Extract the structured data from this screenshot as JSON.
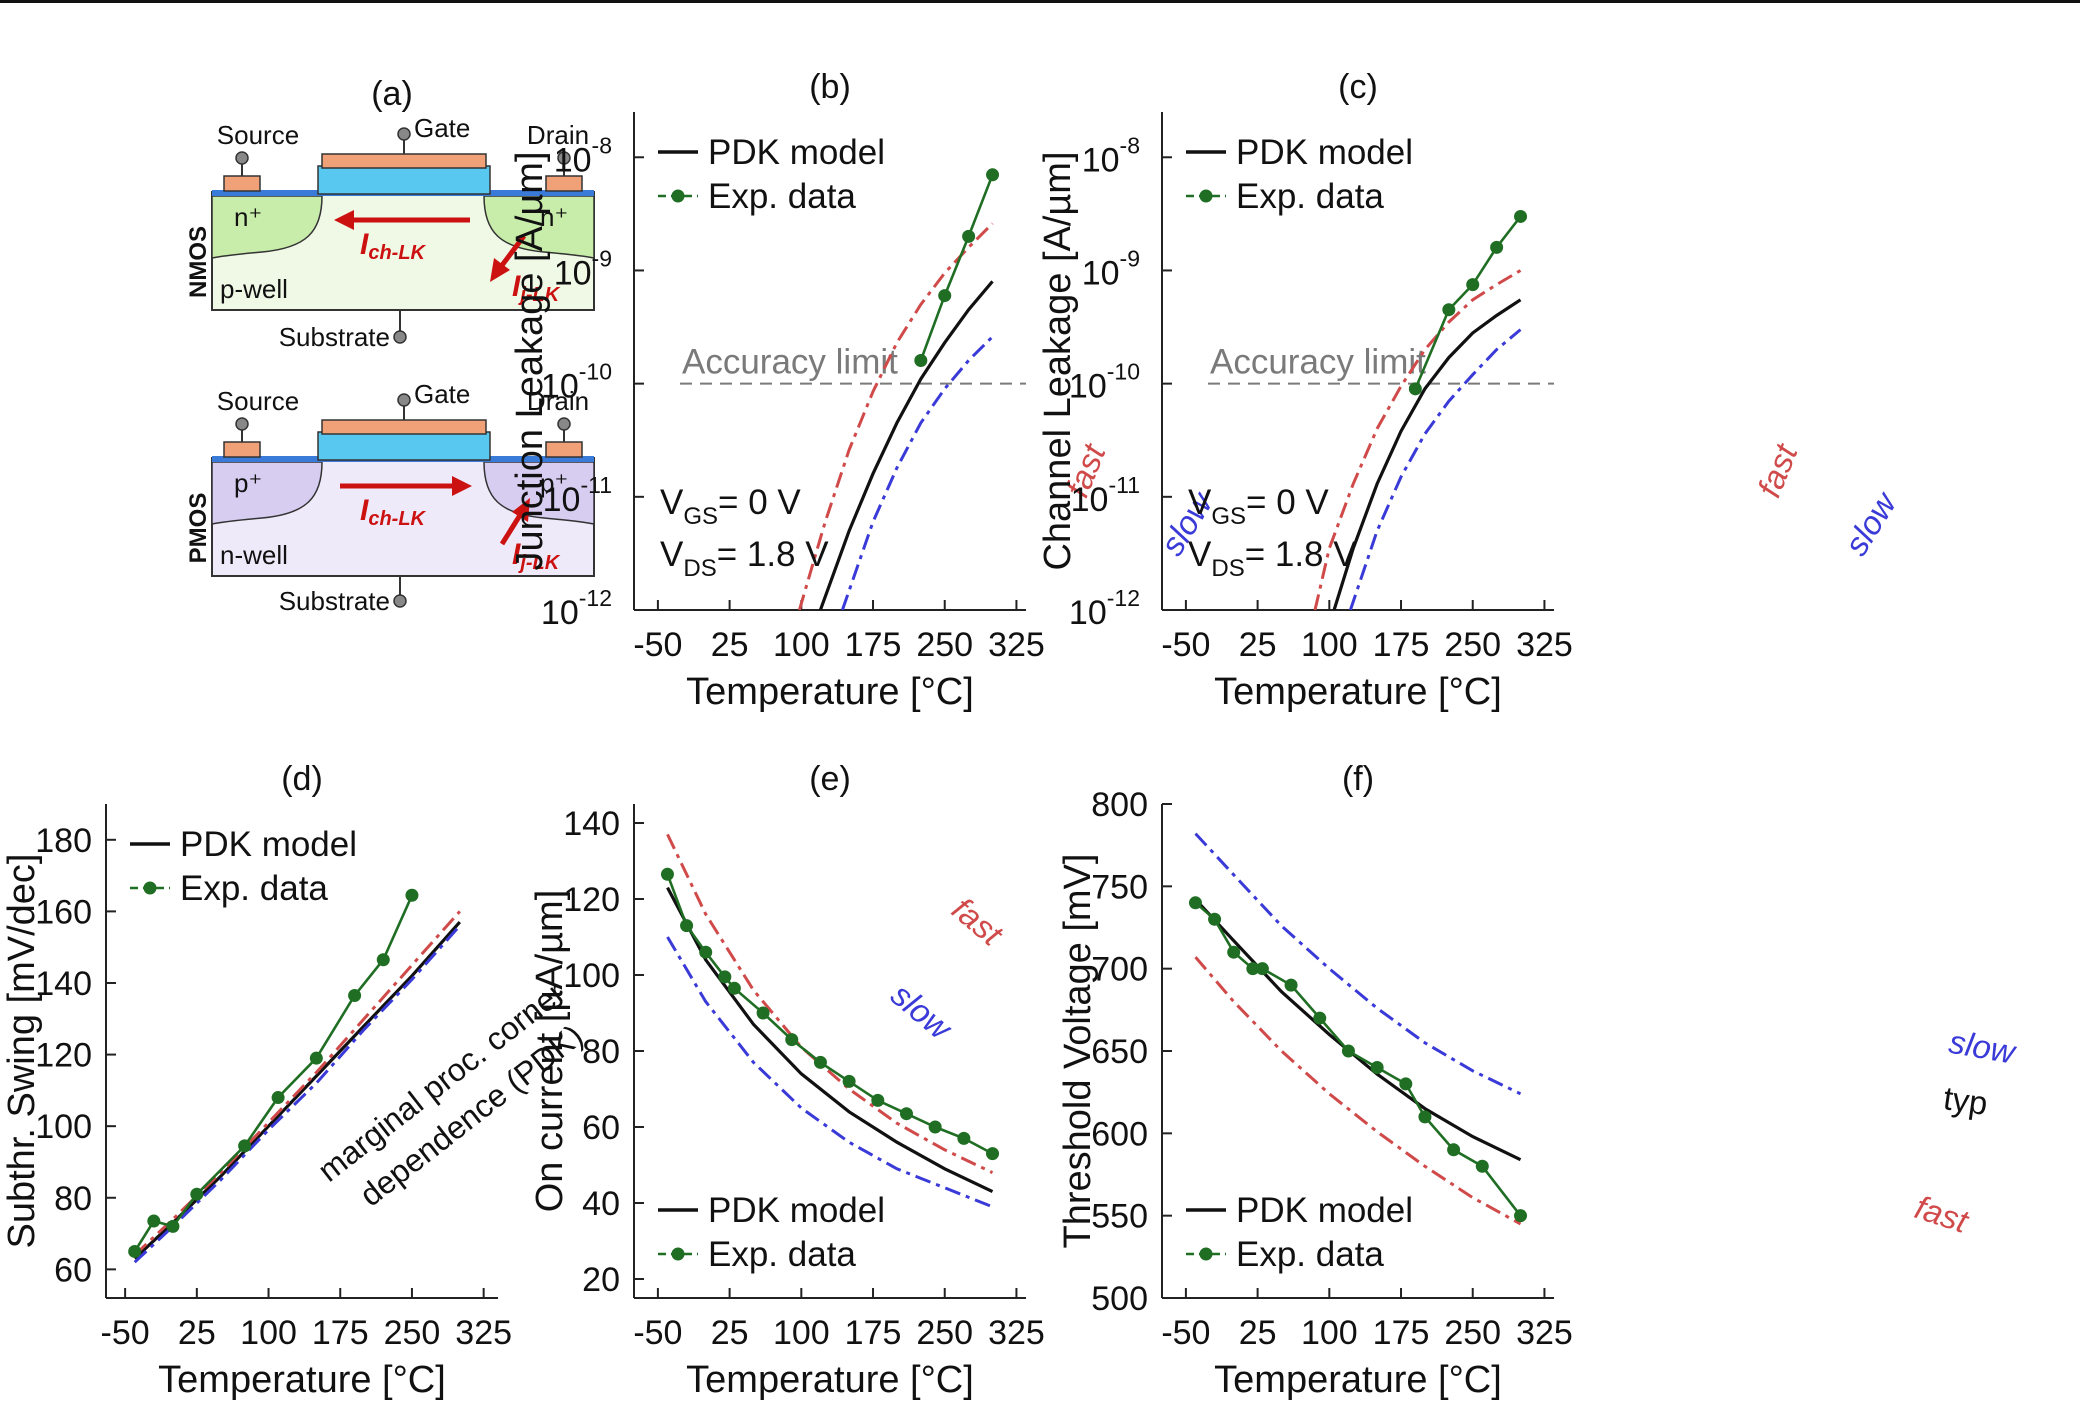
{
  "colors": {
    "pdk": "#111111",
    "exp": "#1f6e23",
    "fast": "#d04a4a",
    "slow": "#3a3ad8",
    "accuracy": "#7a7a7a",
    "current_arrow": "#cc1111",
    "gate_fill": "#f0a178",
    "oxide_fill": "#58c8f0",
    "nmos_well": "#f0f8e6",
    "nmos_diff": "#c8ecaa",
    "pmos_well": "#eeeafa",
    "pmos_diff": "#d6cdf0",
    "contact_fill": "#f0a178"
  },
  "diagram": {
    "panel_label": "(a)",
    "nmos": {
      "device_label": "NMOS",
      "source": "Source",
      "gate": "Gate",
      "drain": "Drain",
      "left_diff": "n⁺",
      "right_diff": "n⁺",
      "well": "p-well",
      "substrate": "Substrate",
      "ich": "I",
      "ich_sub": "ch-LK",
      "ij": "I",
      "ij_sub": "j-LK"
    },
    "pmos": {
      "device_label": "PMOS",
      "source": "Source",
      "gate": "Gate",
      "drain": "Drain",
      "left_diff": "p⁺",
      "right_diff": "p⁺",
      "well": "n-well",
      "substrate": "Substrate",
      "ich": "I",
      "ich_sub": "ch-LK",
      "ij": "I",
      "ij_sub": "j-LK"
    }
  },
  "chart_data": [
    {
      "id": "b",
      "type": "line",
      "title": "(b)",
      "xlabel": "Temperature [°C]",
      "ylabel": "Junction Leakage [A/µm]",
      "xlim": [
        -75,
        335
      ],
      "ylim_exp": [
        -12,
        -7.6
      ],
      "yscale": "log",
      "xticks": [
        "-50",
        "25",
        "100",
        "175",
        "250",
        "325"
      ],
      "yticks": [
        {
          "base": "10",
          "exp": "-8"
        },
        {
          "base": "10",
          "exp": "-9"
        },
        {
          "base": "10",
          "exp": "-10"
        },
        {
          "base": "10",
          "exp": "-11"
        },
        {
          "base": "10",
          "exp": "-12"
        }
      ],
      "legend": {
        "pdk": "PDK model",
        "exp": "Exp. data",
        "position": "top-left"
      },
      "accuracy_limit": {
        "label": "Accuracy limit",
        "value": 1e-10
      },
      "bias": [
        {
          "v": "V",
          "sub": "GS",
          "rest": "= 0 V"
        },
        {
          "v": "V",
          "sub": "DS",
          "rest": "= 1.8 V"
        }
      ],
      "corner_labels": {
        "fast": "fast",
        "slow": "slow"
      },
      "series": [
        {
          "name": "PDK model",
          "style": "solid",
          "x": [
            120,
            150,
            175,
            200,
            225,
            250,
            275,
            300
          ],
          "y": [
            1e-12,
            5e-12,
            1.6e-11,
            4.5e-11,
            1.1e-10,
            2.3e-10,
            4.5e-10,
            8e-10
          ]
        },
        {
          "name": "fast",
          "style": "dashdot",
          "x": [
            98,
            125,
            150,
            175,
            200,
            225,
            250,
            275,
            300
          ],
          "y": [
            1e-12,
            6e-12,
            2.6e-11,
            8.5e-11,
            2.3e-10,
            5e-10,
            9.5e-10,
            1.6e-09,
            2.6e-09
          ]
        },
        {
          "name": "slow",
          "style": "dashdot",
          "x": [
            143,
            175,
            200,
            225,
            250,
            275,
            300
          ],
          "y": [
            1e-12,
            6e-12,
            1.8e-11,
            4.5e-11,
            9e-11,
            1.6e-10,
            2.6e-10
          ]
        },
        {
          "name": "Exp. data",
          "style": "markers",
          "x": [
            225,
            250,
            275,
            300
          ],
          "y": [
            1.6e-10,
            6e-10,
            2e-09,
            7e-09
          ]
        }
      ]
    },
    {
      "id": "c",
      "type": "line",
      "title": "(c)",
      "xlabel": "Temperature [°C]",
      "ylabel": "Channel Leakage [A/µm]",
      "xlim": [
        -75,
        335
      ],
      "ylim_exp": [
        -12,
        -7.6
      ],
      "yscale": "log",
      "xticks": [
        "-50",
        "25",
        "100",
        "175",
        "250",
        "325"
      ],
      "yticks": [
        {
          "base": "10",
          "exp": "-8"
        },
        {
          "base": "10",
          "exp": "-9"
        },
        {
          "base": "10",
          "exp": "-10"
        },
        {
          "base": "10",
          "exp": "-11"
        },
        {
          "base": "10",
          "exp": "-12"
        }
      ],
      "legend": {
        "pdk": "PDK model",
        "exp": "Exp. data",
        "position": "top-left"
      },
      "accuracy_limit": {
        "label": "Accuracy limit",
        "value": 1e-10
      },
      "bias": [
        {
          "v": "V",
          "sub": "GS",
          "rest": "= 0 V"
        },
        {
          "v": "V",
          "sub": "DS",
          "rest": "= 1.8 V"
        }
      ],
      "corner_labels": {
        "fast": "fast",
        "slow": "slow"
      },
      "series": [
        {
          "name": "PDK model",
          "style": "solid",
          "x": [
            105,
            125,
            150,
            175,
            200,
            225,
            250,
            275,
            300
          ],
          "y": [
            1e-12,
            3.5e-12,
            1.3e-11,
            3.8e-11,
            9e-11,
            1.7e-10,
            2.8e-10,
            4e-10,
            5.5e-10
          ]
        },
        {
          "name": "fast",
          "style": "dashdot",
          "x": [
            85,
            100,
            125,
            150,
            175,
            200,
            225,
            250,
            275,
            300
          ],
          "y": [
            1e-12,
            3.5e-12,
            1.3e-11,
            4e-11,
            9.5e-11,
            2e-10,
            3.5e-10,
            5.5e-10,
            7.5e-10,
            1e-09
          ]
        },
        {
          "name": "slow",
          "style": "dashdot",
          "x": [
            122,
            150,
            175,
            200,
            225,
            250,
            275,
            300
          ],
          "y": [
            1e-12,
            5e-12,
            1.5e-11,
            3.6e-11,
            7e-11,
            1.2e-10,
            2e-10,
            3e-10
          ]
        },
        {
          "name": "Exp. data",
          "style": "markers",
          "x": [
            190,
            225,
            250,
            275,
            300
          ],
          "y": [
            9e-11,
            4.5e-10,
            7.5e-10,
            1.6e-09,
            3e-09
          ]
        }
      ]
    },
    {
      "id": "d",
      "type": "line",
      "title": "(d)",
      "xlabel": "Temperature [°C]",
      "ylabel": "Subthr. Swing [mV/dec]",
      "xlim": [
        -70,
        340
      ],
      "ylim": [
        52,
        190
      ],
      "xticks": [
        "-50",
        "25",
        "100",
        "175",
        "250",
        "325"
      ],
      "yticks": [
        "60",
        "80",
        "100",
        "120",
        "140",
        "160",
        "180"
      ],
      "legend": {
        "pdk": "PDK model",
        "exp": "Exp. data",
        "position": "top-left"
      },
      "annotation": [
        "marginal proc. corner",
        "dependence (PDK)"
      ],
      "series": [
        {
          "name": "PDK model",
          "style": "solid",
          "x": [
            -40,
            0,
            50,
            100,
            150,
            200,
            250,
            300
          ],
          "y": [
            63,
            73,
            86,
            100,
            114,
            128,
            142,
            157
          ]
        },
        {
          "name": "fast",
          "style": "dashdot",
          "x": [
            -40,
            0,
            50,
            100,
            150,
            200,
            250,
            300
          ],
          "y": [
            64,
            74,
            87,
            101,
            115,
            130,
            145,
            160
          ]
        },
        {
          "name": "slow",
          "style": "dashdot",
          "x": [
            -40,
            0,
            50,
            100,
            150,
            200,
            250,
            300
          ],
          "y": [
            62,
            72,
            85,
            99,
            112,
            127,
            141,
            156
          ]
        },
        {
          "name": "Exp. data",
          "style": "markers",
          "x": [
            -40,
            -20,
            0,
            25,
            75,
            110,
            150,
            190,
            220,
            250
          ],
          "y": [
            65,
            73.5,
            72,
            81,
            94.5,
            108,
            119,
            136.5,
            146.5,
            164.5
          ]
        }
      ]
    },
    {
      "id": "e",
      "type": "line",
      "title": "(e)",
      "xlabel": "Temperature [°C]",
      "ylabel": "On current [µA/µm]",
      "xlim": [
        -75,
        335
      ],
      "ylim": [
        15,
        145
      ],
      "xticks": [
        "-50",
        "25",
        "100",
        "175",
        "250",
        "325"
      ],
      "yticks": [
        "20",
        "40",
        "60",
        "80",
        "100",
        "120",
        "140"
      ],
      "legend": {
        "pdk": "PDK model",
        "exp": "Exp. data",
        "position": "bottom-left"
      },
      "corner_labels": {
        "fast": "fast",
        "slow": "slow"
      },
      "series": [
        {
          "name": "PDK model",
          "style": "solid",
          "x": [
            -40,
            0,
            50,
            100,
            150,
            200,
            250,
            300
          ],
          "y": [
            123,
            104,
            87,
            74,
            64,
            56,
            49,
            43
          ]
        },
        {
          "name": "fast",
          "style": "dashdot",
          "x": [
            -40,
            0,
            50,
            100,
            150,
            200,
            250,
            300
          ],
          "y": [
            137,
            116,
            96,
            81,
            70,
            61,
            54,
            48
          ]
        },
        {
          "name": "slow",
          "style": "dashdot",
          "x": [
            -40,
            0,
            50,
            100,
            150,
            200,
            250,
            300
          ],
          "y": [
            110,
            93,
            77,
            65,
            56,
            49,
            44,
            39
          ]
        },
        {
          "name": "Exp. data",
          "style": "markers",
          "x": [
            -40,
            -20,
            0,
            20,
            30,
            60,
            90,
            120,
            150,
            180,
            210,
            240,
            270,
            300
          ],
          "y": [
            126.5,
            113,
            106,
            99.5,
            96.5,
            90,
            83,
            77,
            72,
            67,
            63.5,
            60,
            57,
            53
          ]
        }
      ]
    },
    {
      "id": "f",
      "type": "line",
      "title": "(f)",
      "xlabel": "Temperature [°C]",
      "ylabel": "Threshold Voltage [mV]",
      "xlim": [
        -75,
        335
      ],
      "ylim": [
        500,
        800
      ],
      "xticks": [
        "-50",
        "25",
        "100",
        "175",
        "250",
        "325"
      ],
      "yticks": [
        "500",
        "550",
        "600",
        "650",
        "700",
        "750",
        "800"
      ],
      "legend": {
        "pdk": "PDK model",
        "exp": "Exp. data",
        "position": "bottom-left"
      },
      "corner_labels": {
        "fast": "fast",
        "slow": "slow",
        "typ": "typ"
      },
      "series": [
        {
          "name": "PDK model",
          "style": "solid",
          "x": [
            -40,
            0,
            50,
            100,
            150,
            200,
            250,
            300
          ],
          "y": [
            742,
            717,
            686,
            660,
            636,
            615,
            598,
            584
          ]
        },
        {
          "name": "fast",
          "style": "dashdot",
          "x": [
            -40,
            0,
            50,
            100,
            150,
            200,
            250,
            300
          ],
          "y": [
            707,
            680,
            650,
            624,
            601,
            580,
            561,
            545
          ]
        },
        {
          "name": "slow",
          "style": "dashdot",
          "x": [
            -40,
            0,
            50,
            100,
            150,
            200,
            250,
            300
          ],
          "y": [
            782,
            757,
            726,
            700,
            676,
            655,
            638,
            624
          ]
        },
        {
          "name": "Exp. data",
          "style": "markers",
          "x": [
            -40,
            -20,
            0,
            20,
            30,
            60,
            90,
            120,
            150,
            180,
            200,
            230,
            260,
            300
          ],
          "y": [
            740,
            730,
            710,
            700,
            700,
            690,
            670,
            650,
            640,
            630,
            610,
            590,
            580,
            550
          ]
        }
      ]
    }
  ]
}
